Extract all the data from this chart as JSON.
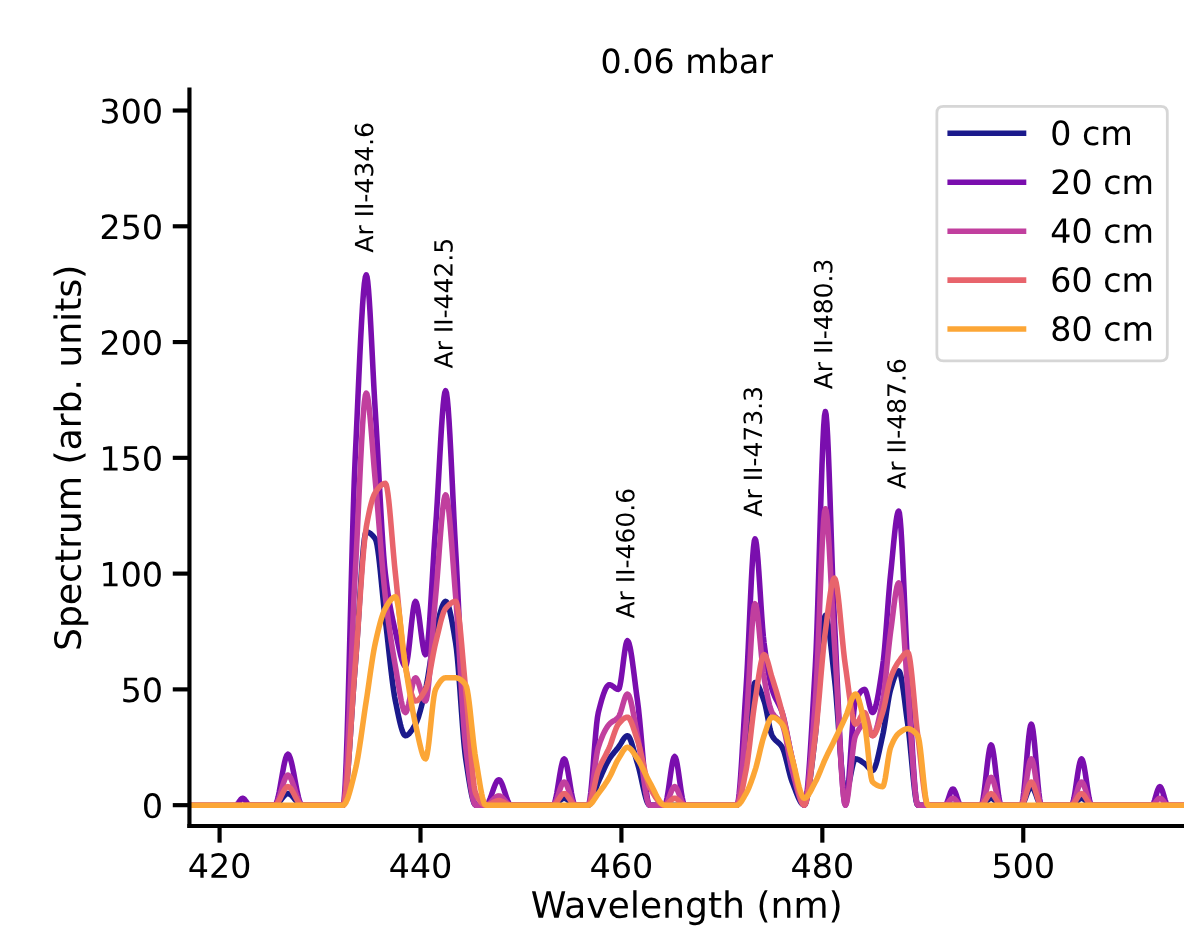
{
  "chart_data": {
    "type": "line",
    "title": "0.06 mbar",
    "xlabel": "Wavelength (nm)",
    "ylabel": "Spectrum (arb. units)",
    "x": [
      417,
      421.6,
      422.3,
      423,
      425.5,
      426.8,
      428.2,
      429.5,
      432.3,
      433.5,
      434.6,
      435.5,
      436.5,
      437.5,
      438.5,
      439.5,
      440.5,
      441.5,
      442.5,
      443.5,
      444.5,
      445.5,
      446.5,
      447.8,
      449,
      453.2,
      454.3,
      455.4,
      456.7,
      457.7,
      458.8,
      459.7,
      460.6,
      461.6,
      462.8,
      464.3,
      465.3,
      466.3,
      471.5,
      472.4,
      473.3,
      474.2,
      475,
      476,
      477,
      478.2,
      479.3,
      480.3,
      481.2,
      482.3,
      483.3,
      484.2,
      485,
      486,
      486.8,
      487.6,
      488.5,
      489.5,
      490.5,
      492.2,
      493,
      493.8,
      495.8,
      496.8,
      497.8,
      499.8,
      500.8,
      501.8,
      504.8,
      505.8,
      506.8,
      512.8,
      513.6,
      514.4,
      516
    ],
    "series": [
      {
        "name": "0 cm",
        "color": "#1b1a8c",
        "values": [
          null,
          null,
          null,
          0,
          0,
          5,
          0,
          0,
          0,
          60,
          118,
          115,
          80,
          45,
          30,
          35,
          50,
          75,
          88,
          70,
          20,
          0,
          0,
          0,
          0,
          0,
          3,
          0,
          0,
          10,
          20,
          25,
          30,
          18,
          0,
          0,
          0,
          0,
          0,
          20,
          53,
          45,
          30,
          25,
          10,
          0,
          30,
          82,
          55,
          5,
          20,
          18,
          15,
          30,
          50,
          58,
          35,
          0,
          0,
          0,
          0,
          0,
          0,
          3,
          0,
          0,
          8,
          0,
          0,
          3,
          0,
          0,
          null,
          null,
          null
        ]
      },
      {
        "name": "20 cm",
        "color": "#7a0eae",
        "values": [
          0,
          0,
          3,
          0,
          0,
          22,
          0,
          0,
          0,
          150,
          229,
          170,
          100,
          75,
          60,
          88,
          65,
          120,
          179,
          110,
          30,
          0,
          0,
          11,
          0,
          0,
          20,
          0,
          0,
          40,
          52,
          50,
          71,
          45,
          0,
          0,
          21,
          0,
          0,
          50,
          115,
          70,
          50,
          40,
          20,
          0,
          60,
          170,
          80,
          0,
          45,
          50,
          40,
          60,
          100,
          127,
          60,
          0,
          0,
          0,
          7,
          0,
          0,
          26,
          0,
          0,
          35,
          0,
          0,
          20,
          0,
          0,
          8,
          0,
          0
        ]
      },
      {
        "name": "40 cm",
        "color": "#c13f9e",
        "values": [
          null,
          null,
          null,
          0,
          0,
          13,
          0,
          0,
          0,
          100,
          178,
          140,
          90,
          60,
          40,
          55,
          45,
          90,
          134,
          90,
          25,
          0,
          0,
          4,
          0,
          0,
          10,
          0,
          0,
          25,
          35,
          38,
          48,
          30,
          0,
          0,
          8,
          0,
          0,
          35,
          87,
          55,
          40,
          35,
          15,
          0,
          45,
          128,
          70,
          0,
          30,
          35,
          30,
          45,
          75,
          96,
          50,
          0,
          0,
          0,
          3,
          0,
          0,
          12,
          0,
          0,
          20,
          0,
          0,
          10,
          0,
          0,
          3,
          0,
          0
        ]
      },
      {
        "name": "60 cm",
        "color": "#e8646c",
        "values": [
          0,
          0,
          0,
          0,
          0,
          8,
          0,
          0,
          0,
          60,
          120,
          135,
          139,
          100,
          60,
          45,
          50,
          70,
          85,
          88,
          50,
          5,
          0,
          2,
          0,
          0,
          5,
          0,
          0,
          15,
          25,
          35,
          38,
          28,
          8,
          0,
          3,
          0,
          0,
          15,
          45,
          65,
          55,
          40,
          20,
          0,
          30,
          75,
          98,
          60,
          35,
          40,
          30,
          40,
          55,
          62,
          66,
          30,
          0,
          0,
          0,
          0,
          0,
          5,
          0,
          0,
          10,
          0,
          0,
          5,
          0,
          0,
          0,
          0,
          0
        ]
      },
      {
        "name": "80 cm",
        "color": "#fca636",
        "values": [
          0,
          0,
          0,
          0,
          0,
          0,
          0,
          0,
          0,
          15,
          45,
          70,
          85,
          90,
          60,
          35,
          20,
          50,
          55,
          55,
          52,
          20,
          0,
          0,
          0,
          0,
          0,
          0,
          0,
          5,
          12,
          20,
          25,
          20,
          10,
          0,
          0,
          0,
          0,
          5,
          15,
          30,
          38,
          35,
          20,
          3,
          10,
          20,
          28,
          38,
          48,
          35,
          10,
          8,
          25,
          31,
          33,
          30,
          0,
          0,
          0,
          0,
          0,
          0,
          0,
          0,
          0,
          0,
          0,
          0,
          0,
          0,
          0,
          0,
          0
        ]
      }
    ],
    "annotations": [
      {
        "text": "Ar II-434.6",
        "x": 434.6,
        "y": 229
      },
      {
        "text": "Ar II-442.5",
        "x": 442.5,
        "y": 179
      },
      {
        "text": "Ar II-460.6",
        "x": 460.6,
        "y": 71
      },
      {
        "text": "Ar II-473.3",
        "x": 473.3,
        "y": 115
      },
      {
        "text": "Ar II-480.3",
        "x": 480.3,
        "y": 170
      },
      {
        "text": "Ar II-487.6",
        "x": 487.6,
        "y": 127
      }
    ],
    "xlim": [
      417,
      516
    ],
    "xticks": [
      420,
      440,
      460,
      480,
      500
    ],
    "ylim": [
      -9,
      309
    ],
    "yticks": [
      0,
      50,
      100,
      150,
      200,
      250,
      300
    ],
    "grid": false,
    "legend": "top right",
    "marker": "none",
    "line_style": "solid"
  }
}
